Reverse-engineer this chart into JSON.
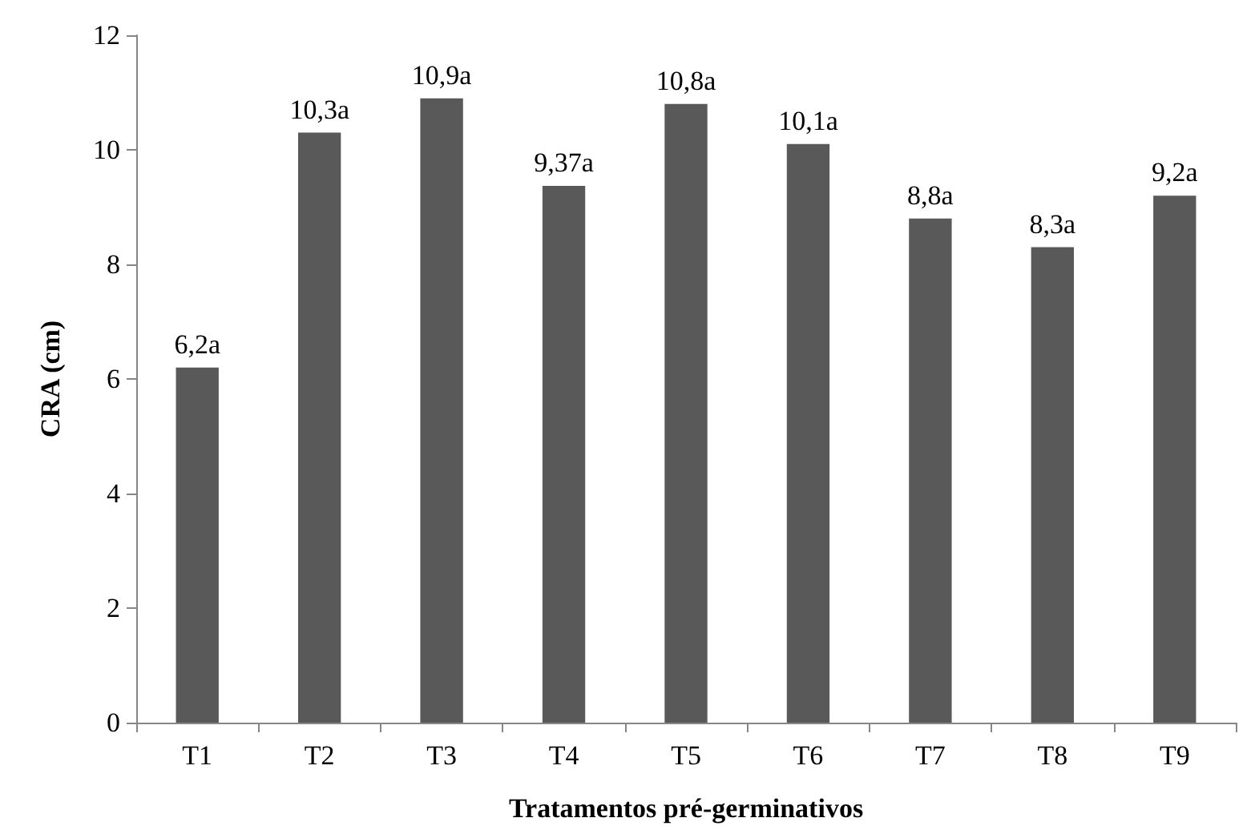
{
  "chart_data": {
    "type": "bar",
    "xlabel": "Tratamentos pré-germinativos",
    "ylabel": "CRA (cm)",
    "categories": [
      "T1",
      "T2",
      "T3",
      "T4",
      "T5",
      "T6",
      "T7",
      "T8",
      "T9"
    ],
    "values": [
      6.2,
      10.3,
      10.9,
      9.37,
      10.8,
      10.1,
      8.8,
      8.3,
      9.2
    ],
    "value_labels": [
      "6,2a",
      "10,3a",
      "10,9a",
      "9,37a",
      "10,8a",
      "10,1a",
      "8,8a",
      "8,3a",
      "9,2a"
    ],
    "color": "#595959",
    "ylim": [
      0,
      12
    ],
    "yticks": [
      0,
      2,
      4,
      6,
      8,
      10,
      12
    ],
    "grid": false
  }
}
